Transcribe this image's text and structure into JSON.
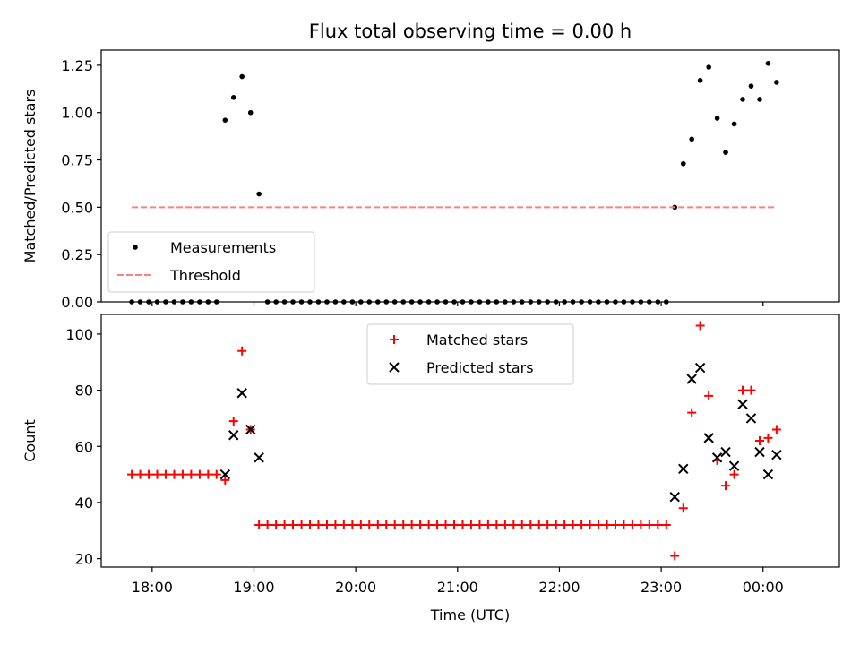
{
  "figure": {
    "title": "Flux total observing time = 0.00 h"
  },
  "chart_data": [
    {
      "type": "scatter",
      "title": "Flux total observing time = 0.00 h",
      "xlabel": "",
      "ylabel": "Matched/Predicted stars",
      "x_unit": "hours (time of day, UTC)",
      "xlim": [
        17.5,
        24.75
      ],
      "ylim": [
        0,
        1.33
      ],
      "yticks": [
        0,
        0.25,
        0.5,
        0.75,
        1.0,
        1.25
      ],
      "ytick_labels": [
        "0.00",
        "0.25",
        "0.50",
        "0.75",
        "1.00",
        "1.25"
      ],
      "grid": false,
      "legend_position": "lower-left",
      "series": [
        {
          "name": "Measurements",
          "marker": "dot",
          "color": "#000000",
          "points": [
            [
              17.8,
              0
            ],
            [
              17.883,
              0
            ],
            [
              17.967,
              0
            ],
            [
              18.05,
              0
            ],
            [
              18.133,
              0
            ],
            [
              18.217,
              0
            ],
            [
              18.3,
              0
            ],
            [
              18.383,
              0
            ],
            [
              18.467,
              0
            ],
            [
              18.55,
              0
            ],
            [
              18.633,
              0
            ],
            [
              18.717,
              0.96
            ],
            [
              18.8,
              1.08
            ],
            [
              18.883,
              1.19
            ],
            [
              18.967,
              1.0
            ],
            [
              19.05,
              0.57
            ],
            [
              19.133,
              0
            ],
            [
              19.217,
              0
            ],
            [
              19.3,
              0
            ],
            [
              19.383,
              0
            ],
            [
              19.467,
              0
            ],
            [
              19.55,
              0
            ],
            [
              19.633,
              0
            ],
            [
              19.717,
              0
            ],
            [
              19.8,
              0
            ],
            [
              19.883,
              0
            ],
            [
              19.967,
              0
            ],
            [
              20.05,
              0
            ],
            [
              20.133,
              0
            ],
            [
              20.217,
              0
            ],
            [
              20.3,
              0
            ],
            [
              20.383,
              0
            ],
            [
              20.467,
              0
            ],
            [
              20.55,
              0
            ],
            [
              20.633,
              0
            ],
            [
              20.717,
              0
            ],
            [
              20.8,
              0
            ],
            [
              20.883,
              0
            ],
            [
              20.967,
              0
            ],
            [
              21.05,
              0
            ],
            [
              21.133,
              0
            ],
            [
              21.217,
              0
            ],
            [
              21.3,
              0
            ],
            [
              21.383,
              0
            ],
            [
              21.467,
              0
            ],
            [
              21.55,
              0
            ],
            [
              21.633,
              0
            ],
            [
              21.717,
              0
            ],
            [
              21.8,
              0
            ],
            [
              21.883,
              0
            ],
            [
              21.967,
              0
            ],
            [
              22.05,
              0
            ],
            [
              22.133,
              0
            ],
            [
              22.217,
              0
            ],
            [
              22.3,
              0
            ],
            [
              22.383,
              0
            ],
            [
              22.467,
              0
            ],
            [
              22.55,
              0
            ],
            [
              22.633,
              0
            ],
            [
              22.717,
              0
            ],
            [
              22.8,
              0
            ],
            [
              22.883,
              0
            ],
            [
              22.967,
              0
            ],
            [
              23.05,
              0
            ],
            [
              23.133,
              0.5
            ],
            [
              23.217,
              0.73
            ],
            [
              23.3,
              0.86
            ],
            [
              23.383,
              1.17
            ],
            [
              23.467,
              1.24
            ],
            [
              23.55,
              0.97
            ],
            [
              23.633,
              0.79
            ],
            [
              23.717,
              0.94
            ],
            [
              23.8,
              1.07
            ],
            [
              23.883,
              1.14
            ],
            [
              23.967,
              1.07
            ],
            [
              24.05,
              1.26
            ],
            [
              24.133,
              1.16
            ]
          ]
        },
        {
          "name": "Threshold",
          "style": "dashed",
          "color": "#ff7f7f",
          "points": [
            [
              17.8,
              0.5
            ],
            [
              24.133,
              0.5
            ]
          ]
        }
      ]
    },
    {
      "type": "scatter",
      "title": "",
      "xlabel": "Time (UTC)",
      "ylabel": "Count",
      "x_unit": "hours (time of day, UTC)",
      "xlim": [
        17.5,
        24.75
      ],
      "ylim": [
        17,
        107
      ],
      "xticks": [
        18,
        19,
        20,
        21,
        22,
        23,
        24
      ],
      "xtick_labels": [
        "18:00",
        "19:00",
        "20:00",
        "21:00",
        "22:00",
        "23:00",
        "00:00"
      ],
      "yticks": [
        20,
        40,
        60,
        80,
        100
      ],
      "ytick_labels": [
        "20",
        "40",
        "60",
        "80",
        "100"
      ],
      "grid": false,
      "legend_position": "upper-center",
      "series": [
        {
          "name": "Matched stars",
          "marker": "plus",
          "color": "#ff0000",
          "points": [
            [
              17.8,
              50
            ],
            [
              17.883,
              50
            ],
            [
              17.967,
              50
            ],
            [
              18.05,
              50
            ],
            [
              18.133,
              50
            ],
            [
              18.217,
              50
            ],
            [
              18.3,
              50
            ],
            [
              18.383,
              50
            ],
            [
              18.467,
              50
            ],
            [
              18.55,
              50
            ],
            [
              18.633,
              50
            ],
            [
              18.717,
              48
            ],
            [
              18.8,
              69
            ],
            [
              18.883,
              94
            ],
            [
              18.967,
              66
            ],
            [
              19.05,
              32
            ],
            [
              19.133,
              32
            ],
            [
              19.217,
              32
            ],
            [
              19.3,
              32
            ],
            [
              19.383,
              32
            ],
            [
              19.467,
              32
            ],
            [
              19.55,
              32
            ],
            [
              19.633,
              32
            ],
            [
              19.717,
              32
            ],
            [
              19.8,
              32
            ],
            [
              19.883,
              32
            ],
            [
              19.967,
              32
            ],
            [
              20.05,
              32
            ],
            [
              20.133,
              32
            ],
            [
              20.217,
              32
            ],
            [
              20.3,
              32
            ],
            [
              20.383,
              32
            ],
            [
              20.467,
              32
            ],
            [
              20.55,
              32
            ],
            [
              20.633,
              32
            ],
            [
              20.717,
              32
            ],
            [
              20.8,
              32
            ],
            [
              20.883,
              32
            ],
            [
              20.967,
              32
            ],
            [
              21.05,
              32
            ],
            [
              21.133,
              32
            ],
            [
              21.217,
              32
            ],
            [
              21.3,
              32
            ],
            [
              21.383,
              32
            ],
            [
              21.467,
              32
            ],
            [
              21.55,
              32
            ],
            [
              21.633,
              32
            ],
            [
              21.717,
              32
            ],
            [
              21.8,
              32
            ],
            [
              21.883,
              32
            ],
            [
              21.967,
              32
            ],
            [
              22.05,
              32
            ],
            [
              22.133,
              32
            ],
            [
              22.217,
              32
            ],
            [
              22.3,
              32
            ],
            [
              22.383,
              32
            ],
            [
              22.467,
              32
            ],
            [
              22.55,
              32
            ],
            [
              22.633,
              32
            ],
            [
              22.717,
              32
            ],
            [
              22.8,
              32
            ],
            [
              22.883,
              32
            ],
            [
              22.967,
              32
            ],
            [
              23.05,
              32
            ],
            [
              23.133,
              21
            ],
            [
              23.217,
              38
            ],
            [
              23.3,
              72
            ],
            [
              23.383,
              103
            ],
            [
              23.467,
              78
            ],
            [
              23.55,
              55
            ],
            [
              23.633,
              46
            ],
            [
              23.717,
              50
            ],
            [
              23.8,
              80
            ],
            [
              23.883,
              80
            ],
            [
              23.967,
              62
            ],
            [
              24.05,
              63
            ],
            [
              24.133,
              66
            ]
          ]
        },
        {
          "name": "Predicted stars",
          "marker": "x",
          "color": "#000000",
          "points": [
            [
              18.717,
              50
            ],
            [
              18.8,
              64
            ],
            [
              18.883,
              79
            ],
            [
              18.967,
              66
            ],
            [
              19.05,
              56
            ],
            [
              23.133,
              42
            ],
            [
              23.217,
              52
            ],
            [
              23.3,
              84
            ],
            [
              23.383,
              88
            ],
            [
              23.467,
              63
            ],
            [
              23.55,
              56
            ],
            [
              23.633,
              58
            ],
            [
              23.717,
              53
            ],
            [
              23.8,
              75
            ],
            [
              23.883,
              70
            ],
            [
              23.967,
              58
            ],
            [
              24.05,
              50
            ],
            [
              24.133,
              57
            ]
          ]
        }
      ]
    }
  ]
}
